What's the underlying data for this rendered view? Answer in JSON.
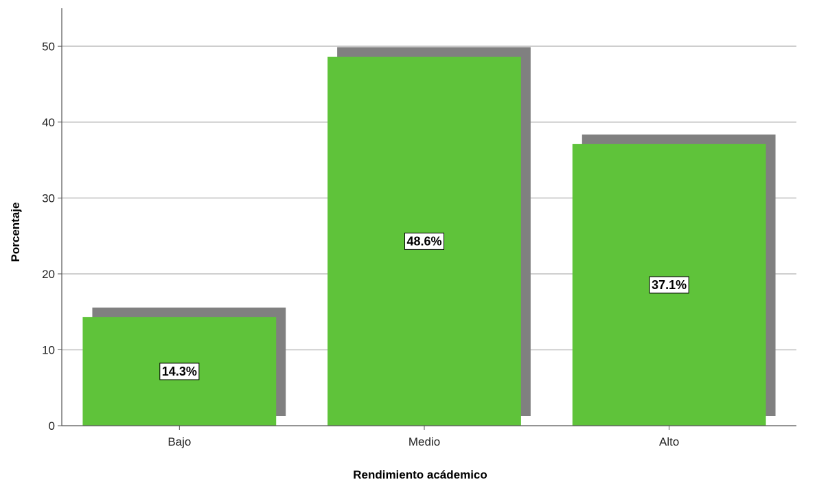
{
  "chart_data": {
    "type": "bar",
    "categories": [
      "Bajo",
      "Medio",
      "Alto"
    ],
    "values": [
      14.3,
      48.6,
      37.1
    ],
    "data_labels": [
      "14.3%",
      "48.6%",
      "37.1%"
    ],
    "xlabel": "Rendimiento acádemico",
    "ylabel": "Porcentaje",
    "ylim": [
      0,
      55
    ],
    "yticks": [
      0,
      10,
      20,
      30,
      40,
      50
    ],
    "grid": true,
    "bar_color": "#5fc33a",
    "shadow_color": "#808080",
    "grid_color": "#c0c0c0",
    "axis_color": "#555555"
  }
}
